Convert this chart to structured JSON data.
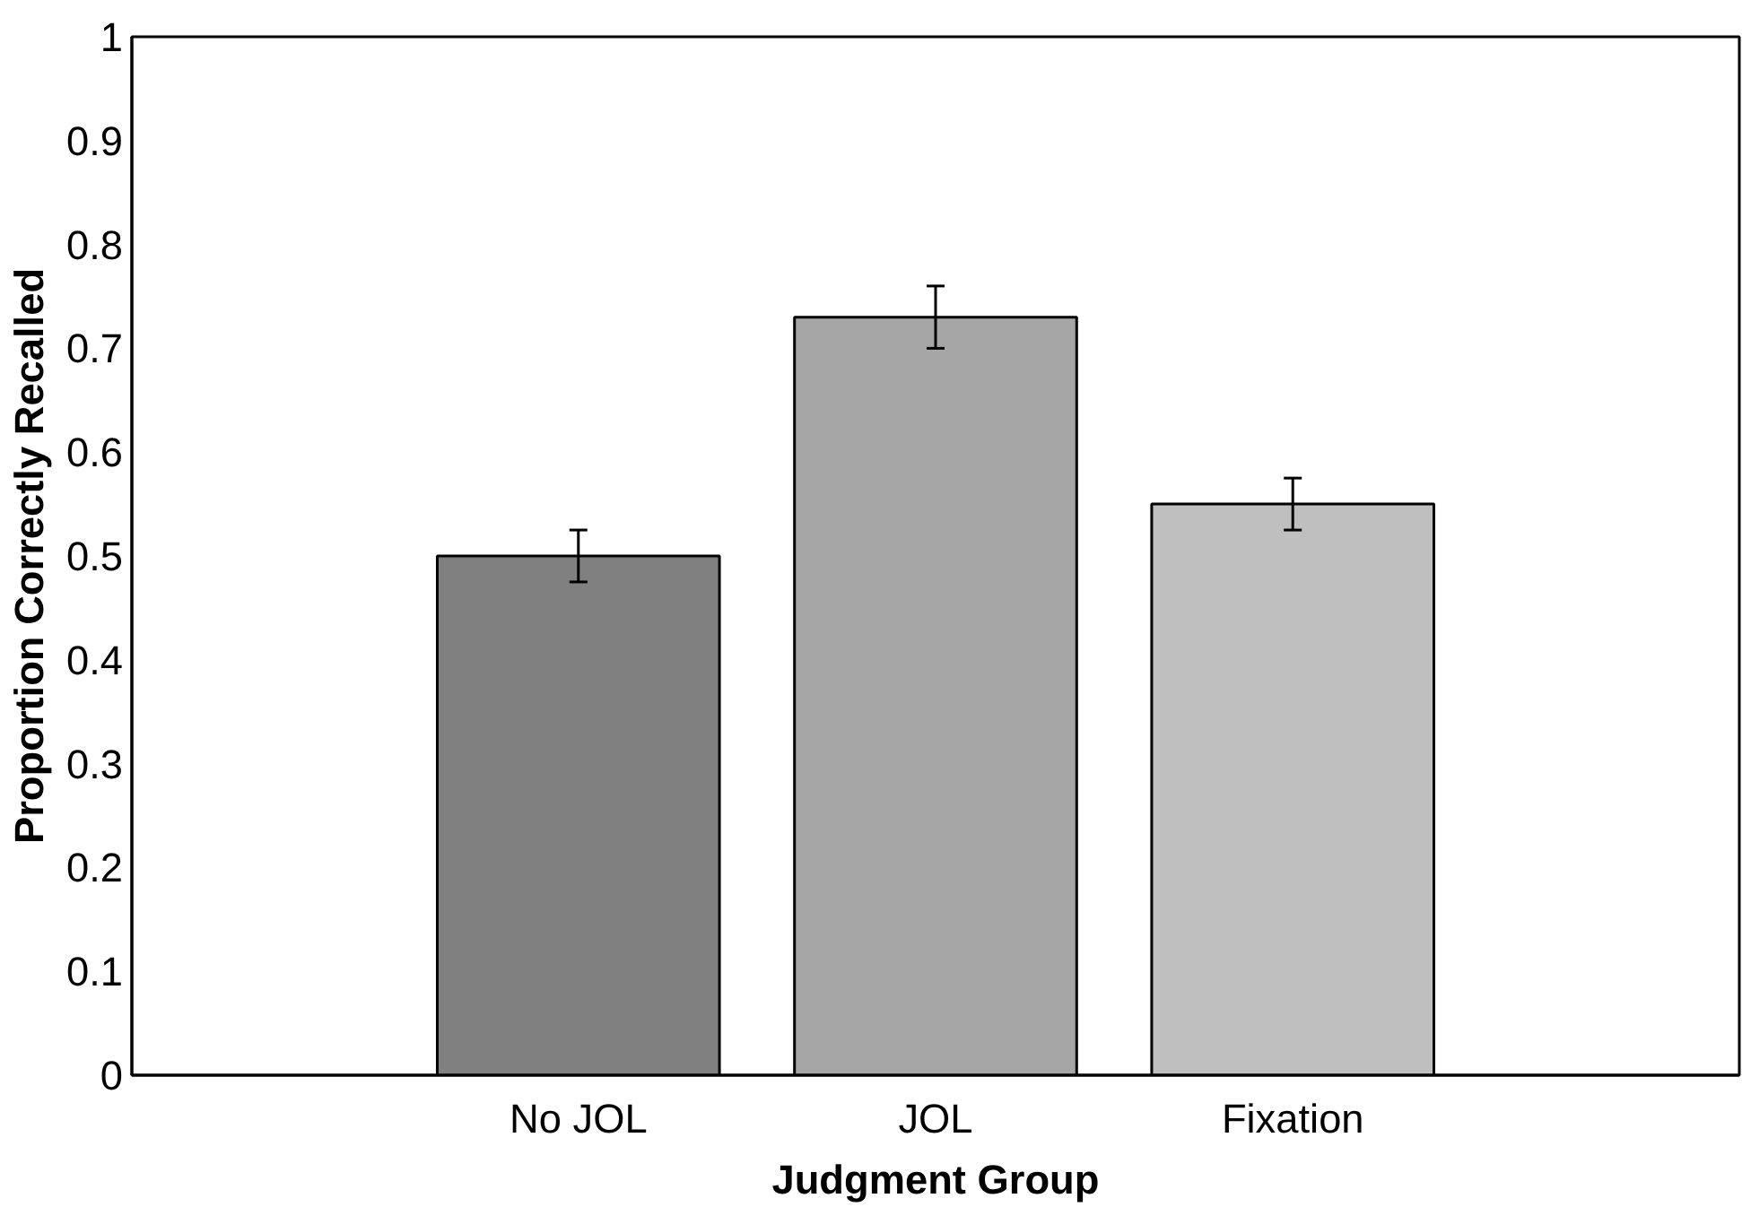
{
  "chart_data": {
    "type": "bar",
    "xlabel": "Judgment Group",
    "ylabel": "Proportion Correctly Recalled",
    "categories": [
      "No JOL",
      "JOL",
      "Fixation"
    ],
    "values": [
      0.5,
      0.73,
      0.55
    ],
    "colors": [
      "#808080",
      "#a6a6a6",
      "#bfbfbf"
    ],
    "errors": [
      0.025,
      0.03,
      0.025
    ],
    "ylim": [
      0,
      1
    ],
    "yticks": [
      0,
      {
        "value": 0.1,
        "label": "0.1"
      },
      {
        "value": 0.2,
        "label": "0.2"
      },
      {
        "value": 0.3,
        "label": "0.3"
      },
      {
        "value": 0.4,
        "label": "0.4"
      },
      {
        "value": 0.5,
        "label": "0.5"
      },
      {
        "value": 0.6,
        "label": "0.6"
      },
      {
        "value": 0.7,
        "label": "0.7"
      },
      {
        "value": 0.8,
        "label": "0.8"
      },
      {
        "value": 0.9,
        "label": "0.9"
      },
      1
    ],
    "grid": false
  }
}
